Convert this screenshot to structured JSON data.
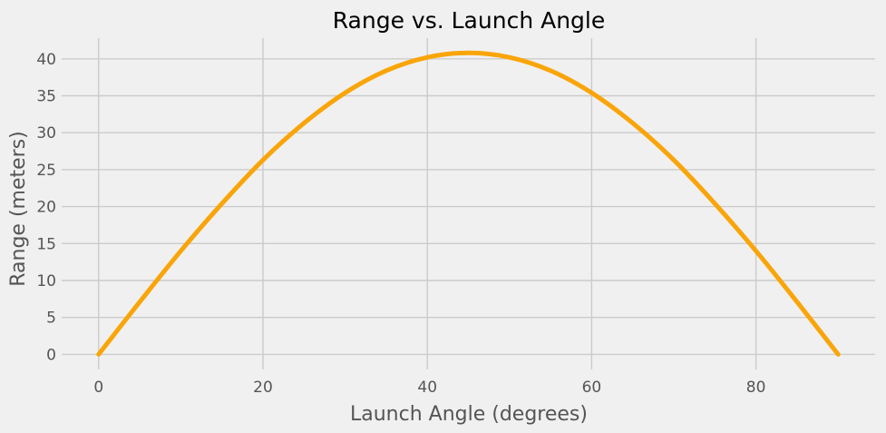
{
  "chart_data": {
    "type": "line",
    "title": "Range vs. Launch Angle",
    "xlabel": "Launch Angle (degrees)",
    "ylabel": "Range (meters)",
    "xlim": [
      -4.5,
      94.5
    ],
    "ylim": [
      -2.04,
      42.8
    ],
    "xticks": [
      0,
      20,
      40,
      60,
      80
    ],
    "yticks": [
      0,
      5,
      10,
      15,
      20,
      25,
      30,
      35,
      40
    ],
    "grid": true,
    "legend": "none",
    "colors": {
      "background": "#f0f0f0",
      "grid": "#cbcbcb",
      "line": "#f9a50a"
    },
    "series": [
      {
        "color": "#f9a50a",
        "x": [
          0,
          5,
          10,
          15,
          20,
          25,
          30,
          35,
          40,
          45,
          50,
          55,
          60,
          65,
          70,
          75,
          80,
          85,
          90
        ],
        "y": [
          0,
          7.1,
          14.0,
          20.4,
          26.3,
          31.3,
          35.4,
          38.4,
          40.2,
          40.8,
          40.2,
          38.4,
          35.4,
          31.3,
          26.3,
          20.4,
          14.0,
          7.1,
          0
        ]
      }
    ]
  }
}
